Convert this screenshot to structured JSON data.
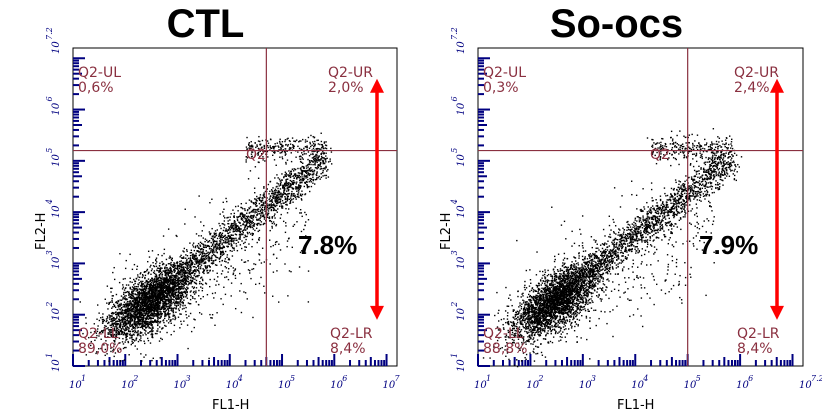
{
  "chart_data": [
    {
      "type": "scatter",
      "title": "CTL",
      "xlabel": "FL1-H",
      "ylabel": "FL2-H",
      "xlim": [
        1,
        7.2
      ],
      "ylim": [
        1,
        7.2
      ],
      "log_scale": true,
      "x_ticks": [
        "1",
        "2",
        "3",
        "4",
        "5",
        "6",
        "7"
      ],
      "y_ticks": [
        "1",
        "2",
        "3",
        "4",
        "5",
        "6",
        "7.2"
      ],
      "gate": {
        "name": "Q2",
        "x": 4.7,
        "y": 5.2
      },
      "quadrants": {
        "ul": {
          "name": "Q2-UL",
          "value": "0,6%"
        },
        "ur": {
          "name": "Q2-UR",
          "value": "2,0%"
        },
        "ll": {
          "name": "Q2-LL",
          "value": "89,0%"
        },
        "lr": {
          "name": "Q2-LR",
          "value": "8,4%"
        }
      },
      "annotation": "7.8%",
      "arrow": {
        "from": 6.6,
        "to": 1.9,
        "color": "#ff0000"
      }
    },
    {
      "type": "scatter",
      "title": "So-ocs",
      "xlabel": "FL1-H",
      "ylabel": "FL2-H",
      "xlim": [
        1,
        7.2
      ],
      "ylim": [
        1,
        7.2
      ],
      "log_scale": true,
      "x_ticks": [
        "1",
        "2",
        "3",
        "4",
        "5",
        "6",
        "7.2"
      ],
      "y_ticks": [
        "1",
        "2",
        "3",
        "4",
        "5",
        "6",
        "7.2"
      ],
      "gate": {
        "name": "Q2",
        "x": 5.0,
        "y": 5.2
      },
      "quadrants": {
        "ul": {
          "name": "Q2-UL",
          "value": "0,3%"
        },
        "ur": {
          "name": "Q2-UR",
          "value": "2,4%"
        },
        "ll": {
          "name": "Q2-LL",
          "value": "88,8%"
        },
        "lr": {
          "name": "Q2-LR",
          "value": "8,4%"
        }
      },
      "annotation": "7.9%",
      "arrow": {
        "from": 6.6,
        "to": 1.9,
        "color": "#ff0000"
      }
    }
  ],
  "colors": {
    "axis": "#000080",
    "gate": "#8a3040",
    "dots": "#000000",
    "arrow": "#ff0000"
  }
}
